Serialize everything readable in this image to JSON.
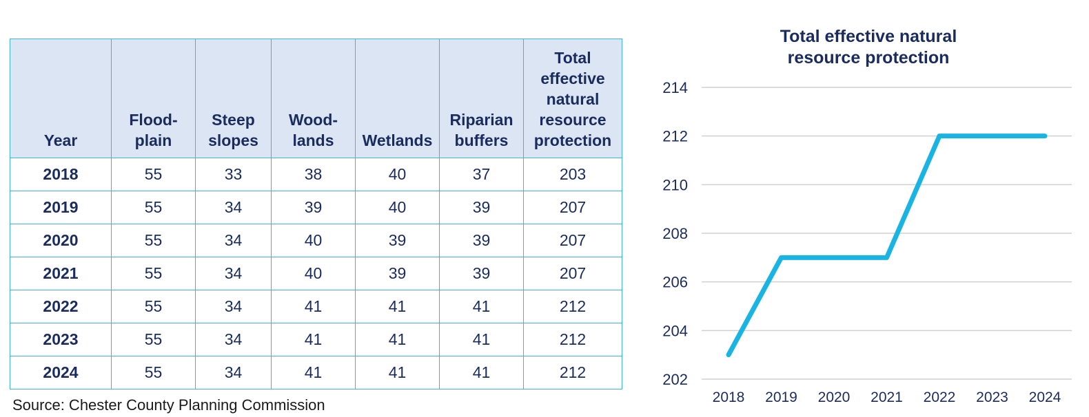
{
  "table": {
    "headers": [
      [
        "Year"
      ],
      [
        "Flood-",
        "plain"
      ],
      [
        "Steep",
        "slopes"
      ],
      [
        "Wood-",
        "lands"
      ],
      [
        "Wetlands"
      ],
      [
        "Riparian",
        "buffers"
      ],
      [
        "Total",
        "effective",
        "natural",
        "resource",
        "protection"
      ]
    ],
    "rows": [
      [
        "2018",
        "55",
        "33",
        "38",
        "40",
        "37",
        "203"
      ],
      [
        "2019",
        "55",
        "34",
        "39",
        "40",
        "39",
        "207"
      ],
      [
        "2020",
        "55",
        "34",
        "40",
        "39",
        "39",
        "207"
      ],
      [
        "2021",
        "55",
        "34",
        "40",
        "39",
        "39",
        "207"
      ],
      [
        "2022",
        "55",
        "34",
        "41",
        "41",
        "41",
        "212"
      ],
      [
        "2023",
        "55",
        "34",
        "41",
        "41",
        "41",
        "212"
      ],
      [
        "2024",
        "55",
        "34",
        "41",
        "41",
        "41",
        "212"
      ]
    ]
  },
  "source": "Source: Chester County Planning Commission",
  "chart_data": {
    "type": "line",
    "title_lines": [
      "Total effective natural",
      "resource protection"
    ],
    "x": [
      "2018",
      "2019",
      "2020",
      "2021",
      "2022",
      "2023",
      "2024"
    ],
    "series": [
      {
        "values": [
          203,
          207,
          207,
          207,
          212,
          212,
          212
        ]
      }
    ],
    "ylim": [
      202,
      214
    ],
    "yticks": [
      202,
      204,
      206,
      208,
      210,
      212,
      214
    ],
    "grid": true,
    "line_color": "#1ab4e3",
    "grid_color": "#d0d0d0"
  }
}
